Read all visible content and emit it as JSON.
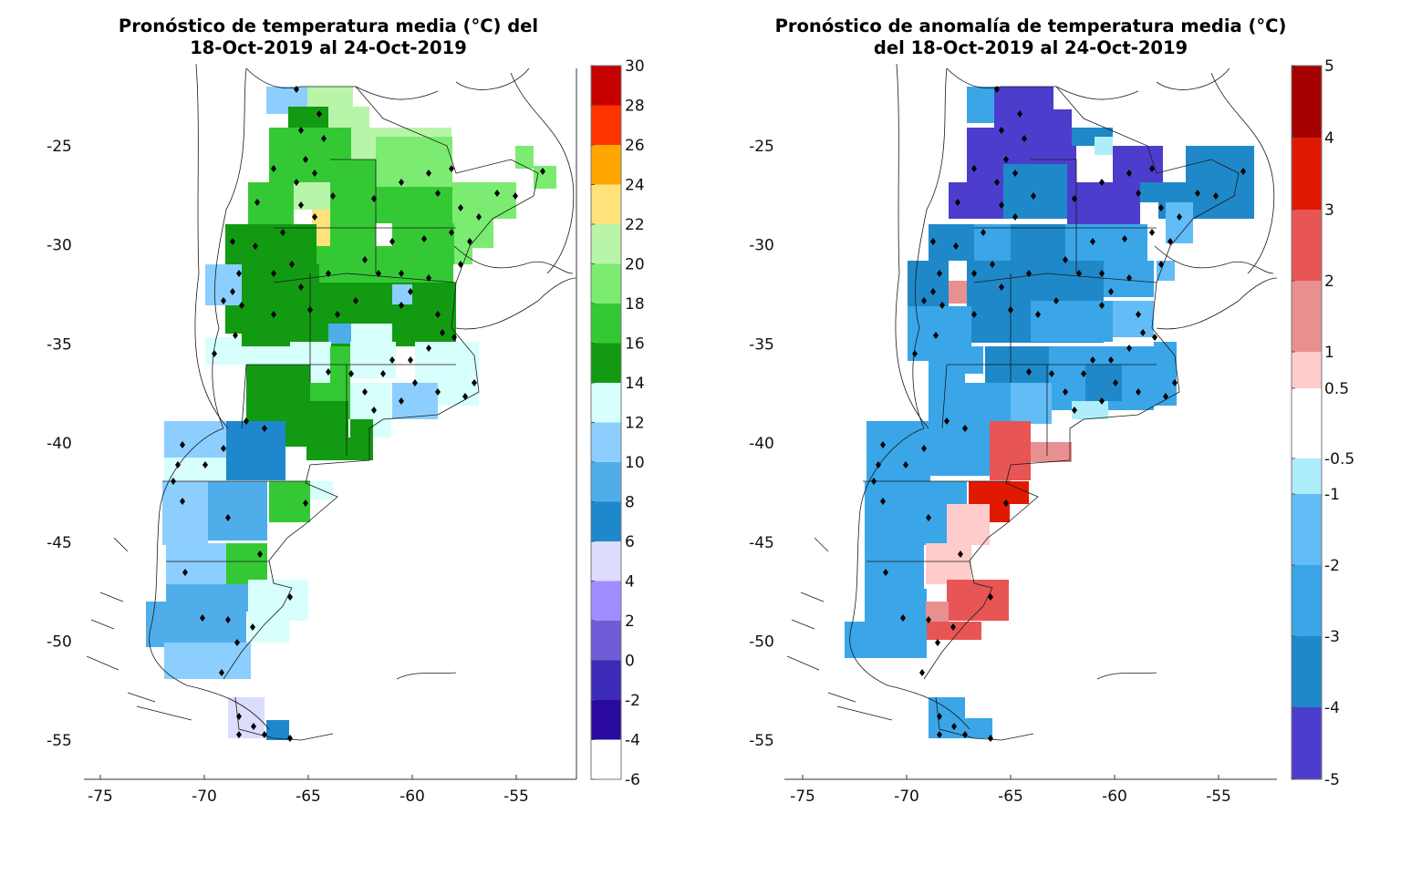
{
  "left_map": {
    "title_line1": "Pronóstico de temperatura media (°C) del",
    "title_line2": "18-Oct-2019 al 24-Oct-2019",
    "x_ticks": [
      "-75",
      "-70",
      "-65",
      "-60",
      "-55"
    ],
    "y_ticks": [
      "-25",
      "-30",
      "-35",
      "-40",
      "-45",
      "-50",
      "-55"
    ],
    "colorbar": {
      "labels": [
        "30",
        "28",
        "26",
        "24",
        "22",
        "20",
        "18",
        "16",
        "14",
        "12",
        "10",
        "8",
        "6",
        "4",
        "2",
        "0",
        "-2",
        "-4",
        "-6"
      ],
      "colors": [
        "#c40000",
        "#ff3300",
        "#ffa500",
        "#ffe27a",
        "#b9f5a8",
        "#7bec71",
        "#34c934",
        "#129a12",
        "#d7fffb",
        "#8ccfff",
        "#4faeea",
        "#1f88cc",
        "#dcdcfc",
        "#9f8cff",
        "#6f5cd6",
        "#3c2bb6",
        "#2a0a9e",
        "#ffffff"
      ]
    }
  },
  "right_map": {
    "title_line1": "Pronóstico de anomalía de temperatura media (°C)",
    "title_line2": "del 18-Oct-2019 al 24-Oct-2019",
    "x_ticks": [
      "-75",
      "-70",
      "-65",
      "-60",
      "-55"
    ],
    "y_ticks": [
      "-25",
      "-30",
      "-35",
      "-40",
      "-45",
      "-50",
      "-55"
    ],
    "colorbar": {
      "labels": [
        "5",
        "4",
        "3",
        "2",
        "1",
        "0.5",
        "-0.5",
        "-1",
        "-2",
        "-3",
        "-4",
        "-5"
      ],
      "colors": [
        "#a40000",
        "#e01a00",
        "#e85555",
        "#e89090",
        "#ffcccc",
        "#ffffff",
        "#aeeefc",
        "#62bcf6",
        "#3aa6e8",
        "#1f88c8",
        "#4d3dcc"
      ]
    }
  }
}
